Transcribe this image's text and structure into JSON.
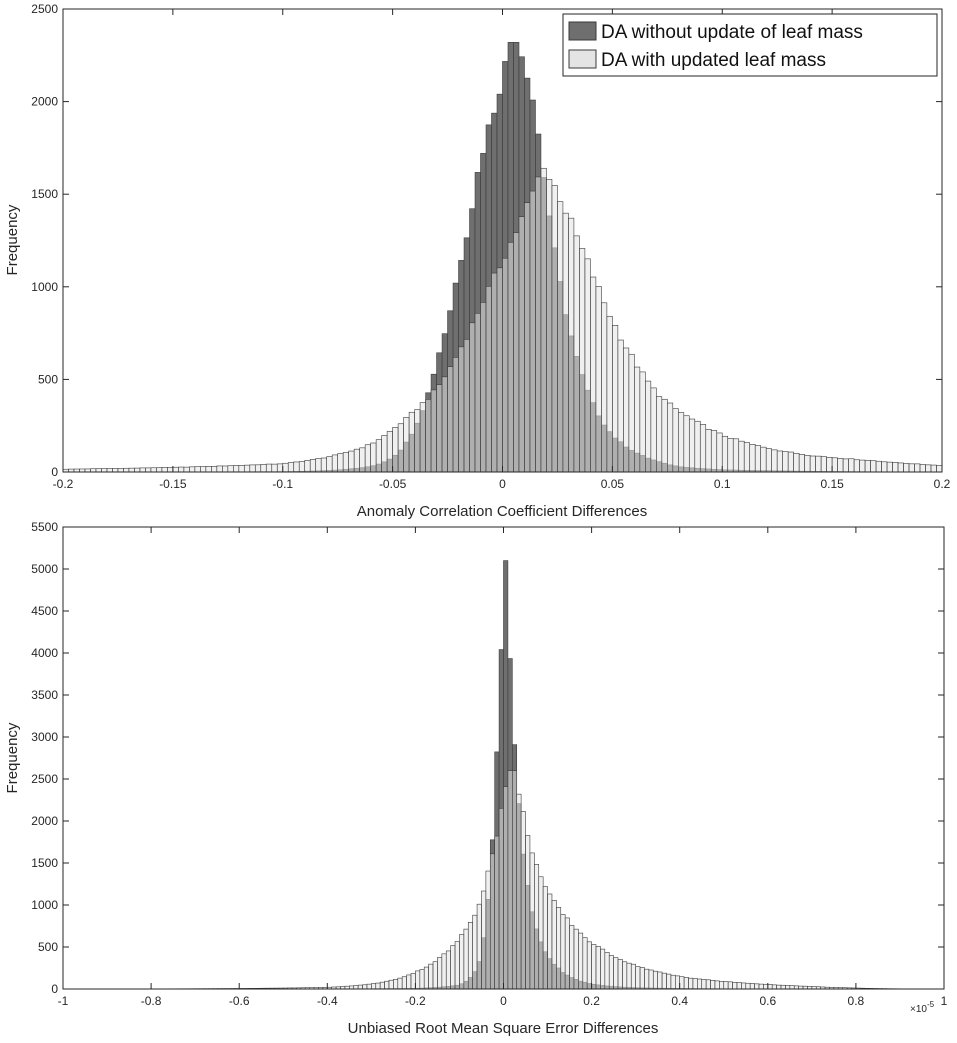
{
  "colors": {
    "series_dark": "#6f6f6f",
    "series_light": "#e4e4e4",
    "overlap": "#a7a7a7",
    "edge": "#3a3a3a",
    "axis": "#262626",
    "background": "#ffffff"
  },
  "chart_data": [
    {
      "type": "bar",
      "subtype": "histogram",
      "xlabel": "Anomaly Correlation Coefficient Differences",
      "ylabel": "Frequency",
      "xlim": [
        -0.2,
        0.2
      ],
      "ylim": [
        0,
        2500
      ],
      "xticks": [
        -0.2,
        -0.15,
        -0.1,
        -0.05,
        0,
        0.05,
        0.1,
        0.15,
        0.2
      ],
      "xtick_labels": [
        "-0.2",
        "-0.15",
        "-0.1",
        "-0.05",
        "0",
        "0.05",
        "0.1",
        "0.15",
        "0.2"
      ],
      "yticks": [
        0,
        500,
        1000,
        1500,
        2000,
        2500
      ],
      "ytick_labels": [
        "0",
        "500",
        "1000",
        "1500",
        "2000",
        "2500"
      ],
      "bin_width": 0.0025,
      "legend": {
        "position": "top-right",
        "entries": [
          "DA without update of leaf mass",
          "DA with updated leaf mass"
        ]
      },
      "series": [
        {
          "name": "DA without update of leaf mass",
          "peak_x": 0.005,
          "peak_value": 2320,
          "profile": [
            {
              "x": -0.2,
              "value": 0
            },
            {
              "x": -0.1,
              "value": 2
            },
            {
              "x": -0.08,
              "value": 8
            },
            {
              "x": -0.06,
              "value": 30
            },
            {
              "x": -0.05,
              "value": 80
            },
            {
              "x": -0.04,
              "value": 240
            },
            {
              "x": -0.03,
              "value": 600
            },
            {
              "x": -0.02,
              "value": 1100
            },
            {
              "x": -0.01,
              "value": 1700
            },
            {
              "x": 0.0,
              "value": 2150
            },
            {
              "x": 0.005,
              "value": 2320
            },
            {
              "x": 0.01,
              "value": 2250
            },
            {
              "x": 0.015,
              "value": 1950
            },
            {
              "x": 0.02,
              "value": 1500
            },
            {
              "x": 0.03,
              "value": 800
            },
            {
              "x": 0.04,
              "value": 400
            },
            {
              "x": 0.05,
              "value": 200
            },
            {
              "x": 0.06,
              "value": 110
            },
            {
              "x": 0.07,
              "value": 60
            },
            {
              "x": 0.08,
              "value": 30
            },
            {
              "x": 0.1,
              "value": 12
            },
            {
              "x": 0.15,
              "value": 3
            },
            {
              "x": 0.2,
              "value": 0
            }
          ]
        },
        {
          "name": "DA with updated leaf mass",
          "peak_x": 0.018,
          "peak_value": 1640,
          "profile": [
            {
              "x": -0.2,
              "value": 15
            },
            {
              "x": -0.15,
              "value": 25
            },
            {
              "x": -0.1,
              "value": 45
            },
            {
              "x": -0.08,
              "value": 80
            },
            {
              "x": -0.06,
              "value": 150
            },
            {
              "x": -0.05,
              "value": 230
            },
            {
              "x": -0.04,
              "value": 330
            },
            {
              "x": -0.03,
              "value": 450
            },
            {
              "x": -0.02,
              "value": 650
            },
            {
              "x": -0.01,
              "value": 900
            },
            {
              "x": 0.0,
              "value": 1150
            },
            {
              "x": 0.01,
              "value": 1400
            },
            {
              "x": 0.018,
              "value": 1640
            },
            {
              "x": 0.025,
              "value": 1520
            },
            {
              "x": 0.03,
              "value": 1380
            },
            {
              "x": 0.04,
              "value": 1100
            },
            {
              "x": 0.05,
              "value": 820
            },
            {
              "x": 0.06,
              "value": 600
            },
            {
              "x": 0.07,
              "value": 430
            },
            {
              "x": 0.08,
              "value": 330
            },
            {
              "x": 0.09,
              "value": 260
            },
            {
              "x": 0.1,
              "value": 200
            },
            {
              "x": 0.12,
              "value": 130
            },
            {
              "x": 0.14,
              "value": 90
            },
            {
              "x": 0.17,
              "value": 60
            },
            {
              "x": 0.2,
              "value": 35
            }
          ]
        }
      ]
    },
    {
      "type": "bar",
      "subtype": "histogram",
      "xlabel": "Unbiased Root Mean Square Error Differences",
      "ylabel": "Frequency",
      "xlim": [
        -1,
        1
      ],
      "ylim": [
        0,
        5500
      ],
      "x_scale_exponent": "×10",
      "x_scale_power": "-5",
      "xticks": [
        -1,
        -0.8,
        -0.6,
        -0.4,
        -0.2,
        0,
        0.2,
        0.4,
        0.6,
        0.8,
        1
      ],
      "xtick_labels": [
        "-1",
        "-0.8",
        "-0.6",
        "-0.4",
        "-0.2",
        "0",
        "0.2",
        "0.4",
        "0.6",
        "0.8",
        "1"
      ],
      "yticks": [
        0,
        500,
        1000,
        1500,
        2000,
        2500,
        3000,
        3500,
        4000,
        4500,
        5000,
        5500
      ],
      "ytick_labels": [
        "0",
        "500",
        "1000",
        "1500",
        "2000",
        "2500",
        "3000",
        "3500",
        "4000",
        "4500",
        "5000",
        "5500"
      ],
      "bin_width": 0.01,
      "series": [
        {
          "name": "DA without update of leaf mass",
          "peak_x": 0.005,
          "peak_value": 5100,
          "profile": [
            {
              "x": -1,
              "value": 0
            },
            {
              "x": -0.4,
              "value": 1
            },
            {
              "x": -0.2,
              "value": 8
            },
            {
              "x": -0.1,
              "value": 50
            },
            {
              "x": -0.06,
              "value": 250
            },
            {
              "x": -0.04,
              "value": 800
            },
            {
              "x": -0.02,
              "value": 2300
            },
            {
              "x": -0.01,
              "value": 3600
            },
            {
              "x": 0.005,
              "value": 5100
            },
            {
              "x": 0.02,
              "value": 3500
            },
            {
              "x": 0.03,
              "value": 2500
            },
            {
              "x": 0.05,
              "value": 1400
            },
            {
              "x": 0.07,
              "value": 800
            },
            {
              "x": 0.1,
              "value": 400
            },
            {
              "x": 0.15,
              "value": 150
            },
            {
              "x": 0.2,
              "value": 60
            },
            {
              "x": 0.3,
              "value": 15
            },
            {
              "x": 0.5,
              "value": 3
            },
            {
              "x": 1,
              "value": 0
            }
          ]
        },
        {
          "name": "DA with updated leaf mass",
          "peak_x": 0.02,
          "peak_value": 2600,
          "profile": [
            {
              "x": -1,
              "value": 0
            },
            {
              "x": -0.4,
              "value": 20
            },
            {
              "x": -0.3,
              "value": 60
            },
            {
              "x": -0.2,
              "value": 200
            },
            {
              "x": -0.15,
              "value": 350
            },
            {
              "x": -0.1,
              "value": 600
            },
            {
              "x": -0.06,
              "value": 950
            },
            {
              "x": -0.03,
              "value": 1500
            },
            {
              "x": 0.0,
              "value": 2300
            },
            {
              "x": 0.02,
              "value": 2600
            },
            {
              "x": 0.04,
              "value": 2200
            },
            {
              "x": 0.06,
              "value": 1750
            },
            {
              "x": 0.08,
              "value": 1400
            },
            {
              "x": 0.1,
              "value": 1150
            },
            {
              "x": 0.15,
              "value": 800
            },
            {
              "x": 0.2,
              "value": 550
            },
            {
              "x": 0.3,
              "value": 280
            },
            {
              "x": 0.4,
              "value": 150
            },
            {
              "x": 0.5,
              "value": 90
            },
            {
              "x": 0.6,
              "value": 55
            },
            {
              "x": 0.7,
              "value": 30
            },
            {
              "x": 0.8,
              "value": 12
            },
            {
              "x": 1,
              "value": 0
            }
          ]
        }
      ]
    }
  ]
}
